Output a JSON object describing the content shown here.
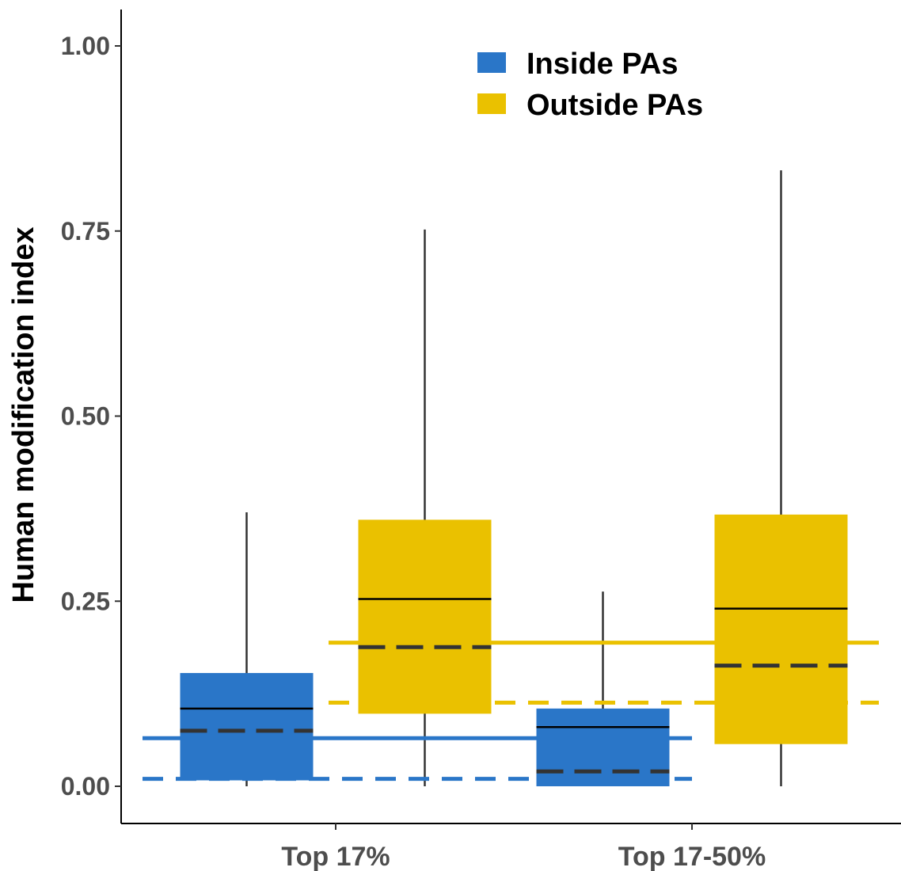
{
  "chart_data": {
    "type": "box",
    "ylabel": "Human modification index",
    "ylim": [
      -0.05,
      1.05
    ],
    "yticks": [
      0.0,
      0.25,
      0.5,
      0.75,
      1.0
    ],
    "ytick_labels": [
      "0.00",
      "0.25",
      "0.50",
      "0.75",
      "1.00"
    ],
    "categories": [
      "Top 17%",
      "Top 17-50%"
    ],
    "grid": false,
    "legend_position": "top-right",
    "series": [
      {
        "name": "Inside PAs",
        "color": "#2a76c8",
        "boxes": [
          {
            "category": "Top 17%",
            "whisker_low": 0.0,
            "q1": 0.008,
            "median": 0.105,
            "q3": 0.153,
            "whisker_high": 0.37,
            "mean": 0.075
          },
          {
            "category": "Top 17-50%",
            "whisker_low": 0.0,
            "q1": 0.0,
            "median": 0.08,
            "q3": 0.105,
            "whisker_high": 0.263,
            "mean": 0.02
          }
        ],
        "reference_lines": {
          "solid": 0.065,
          "dashed": 0.01
        }
      },
      {
        "name": "Outside PAs",
        "color": "#eac100",
        "boxes": [
          {
            "category": "Top 17%",
            "whisker_low": 0.0,
            "q1": 0.098,
            "median": 0.253,
            "q3": 0.36,
            "whisker_high": 0.752,
            "mean": 0.188
          },
          {
            "category": "Top 17-50%",
            "whisker_low": 0.0,
            "q1": 0.057,
            "median": 0.24,
            "q3": 0.367,
            "whisker_high": 0.832,
            "mean": 0.163
          }
        ],
        "reference_lines": {
          "solid": 0.194,
          "dashed": 0.113
        }
      }
    ]
  }
}
